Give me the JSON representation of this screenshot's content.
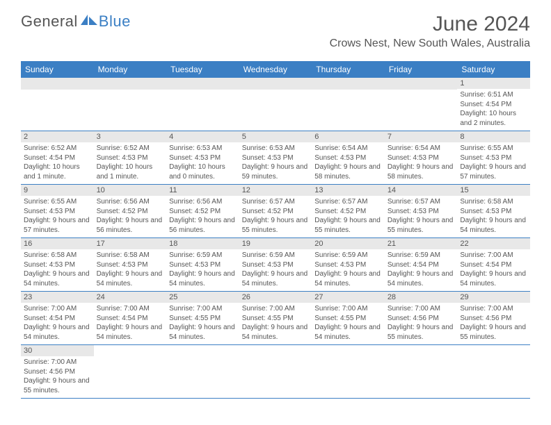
{
  "brand": {
    "part1": "General",
    "part2": "Blue"
  },
  "title": {
    "month": "June 2024",
    "location": "Crows Nest, New South Wales, Australia"
  },
  "colors": {
    "header_bg": "#3b7fc4",
    "header_fg": "#ffffff",
    "daynum_bg": "#e8e8e8",
    "text": "#555555",
    "border": "#3b7fc4"
  },
  "weekdays": [
    "Sunday",
    "Monday",
    "Tuesday",
    "Wednesday",
    "Thursday",
    "Friday",
    "Saturday"
  ],
  "weeks": [
    [
      null,
      null,
      null,
      null,
      null,
      null,
      {
        "n": "1",
        "sr": "6:51 AM",
        "ss": "4:54 PM",
        "dl": "10 hours and 2 minutes."
      }
    ],
    [
      {
        "n": "2",
        "sr": "6:52 AM",
        "ss": "4:54 PM",
        "dl": "10 hours and 1 minute."
      },
      {
        "n": "3",
        "sr": "6:52 AM",
        "ss": "4:53 PM",
        "dl": "10 hours and 1 minute."
      },
      {
        "n": "4",
        "sr": "6:53 AM",
        "ss": "4:53 PM",
        "dl": "10 hours and 0 minutes."
      },
      {
        "n": "5",
        "sr": "6:53 AM",
        "ss": "4:53 PM",
        "dl": "9 hours and 59 minutes."
      },
      {
        "n": "6",
        "sr": "6:54 AM",
        "ss": "4:53 PM",
        "dl": "9 hours and 58 minutes."
      },
      {
        "n": "7",
        "sr": "6:54 AM",
        "ss": "4:53 PM",
        "dl": "9 hours and 58 minutes."
      },
      {
        "n": "8",
        "sr": "6:55 AM",
        "ss": "4:53 PM",
        "dl": "9 hours and 57 minutes."
      }
    ],
    [
      {
        "n": "9",
        "sr": "6:55 AM",
        "ss": "4:53 PM",
        "dl": "9 hours and 57 minutes."
      },
      {
        "n": "10",
        "sr": "6:56 AM",
        "ss": "4:52 PM",
        "dl": "9 hours and 56 minutes."
      },
      {
        "n": "11",
        "sr": "6:56 AM",
        "ss": "4:52 PM",
        "dl": "9 hours and 56 minutes."
      },
      {
        "n": "12",
        "sr": "6:57 AM",
        "ss": "4:52 PM",
        "dl": "9 hours and 55 minutes."
      },
      {
        "n": "13",
        "sr": "6:57 AM",
        "ss": "4:52 PM",
        "dl": "9 hours and 55 minutes."
      },
      {
        "n": "14",
        "sr": "6:57 AM",
        "ss": "4:53 PM",
        "dl": "9 hours and 55 minutes."
      },
      {
        "n": "15",
        "sr": "6:58 AM",
        "ss": "4:53 PM",
        "dl": "9 hours and 54 minutes."
      }
    ],
    [
      {
        "n": "16",
        "sr": "6:58 AM",
        "ss": "4:53 PM",
        "dl": "9 hours and 54 minutes."
      },
      {
        "n": "17",
        "sr": "6:58 AM",
        "ss": "4:53 PM",
        "dl": "9 hours and 54 minutes."
      },
      {
        "n": "18",
        "sr": "6:59 AM",
        "ss": "4:53 PM",
        "dl": "9 hours and 54 minutes."
      },
      {
        "n": "19",
        "sr": "6:59 AM",
        "ss": "4:53 PM",
        "dl": "9 hours and 54 minutes."
      },
      {
        "n": "20",
        "sr": "6:59 AM",
        "ss": "4:53 PM",
        "dl": "9 hours and 54 minutes."
      },
      {
        "n": "21",
        "sr": "6:59 AM",
        "ss": "4:54 PM",
        "dl": "9 hours and 54 minutes."
      },
      {
        "n": "22",
        "sr": "7:00 AM",
        "ss": "4:54 PM",
        "dl": "9 hours and 54 minutes."
      }
    ],
    [
      {
        "n": "23",
        "sr": "7:00 AM",
        "ss": "4:54 PM",
        "dl": "9 hours and 54 minutes."
      },
      {
        "n": "24",
        "sr": "7:00 AM",
        "ss": "4:54 PM",
        "dl": "9 hours and 54 minutes."
      },
      {
        "n": "25",
        "sr": "7:00 AM",
        "ss": "4:55 PM",
        "dl": "9 hours and 54 minutes."
      },
      {
        "n": "26",
        "sr": "7:00 AM",
        "ss": "4:55 PM",
        "dl": "9 hours and 54 minutes."
      },
      {
        "n": "27",
        "sr": "7:00 AM",
        "ss": "4:55 PM",
        "dl": "9 hours and 54 minutes."
      },
      {
        "n": "28",
        "sr": "7:00 AM",
        "ss": "4:56 PM",
        "dl": "9 hours and 55 minutes."
      },
      {
        "n": "29",
        "sr": "7:00 AM",
        "ss": "4:56 PM",
        "dl": "9 hours and 55 minutes."
      }
    ],
    [
      {
        "n": "30",
        "sr": "7:00 AM",
        "ss": "4:56 PM",
        "dl": "9 hours and 55 minutes."
      },
      null,
      null,
      null,
      null,
      null,
      null
    ]
  ],
  "labels": {
    "sunrise": "Sunrise: ",
    "sunset": "Sunset: ",
    "daylight": "Daylight: "
  }
}
